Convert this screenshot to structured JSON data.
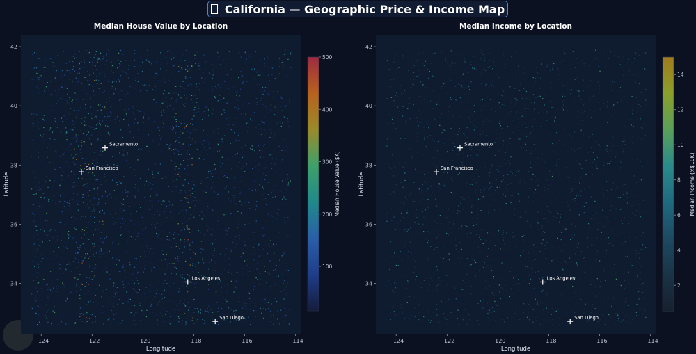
{
  "title": "California — Geographic Price & Income Map",
  "chart_data": [
    {
      "type": "scatter",
      "title": "Median House Value by Location",
      "xlabel": "Longitude",
      "ylabel": "Latitude",
      "xlim": [
        -124.8,
        -113.8
      ],
      "ylim": [
        32.3,
        42.4
      ],
      "xticks": [
        -124,
        -122,
        -120,
        -118,
        -116,
        -114
      ],
      "yticks": [
        34,
        36,
        38,
        40,
        42
      ],
      "colorbar": {
        "label": "Median House Value ($K)",
        "range": [
          15,
          500
        ],
        "ticks": [
          100,
          200,
          300,
          400,
          500
        ],
        "colormap": [
          "#151c3a",
          "#1f3d8a",
          "#2a5fa8",
          "#1f8a8a",
          "#3ea06a",
          "#9a8a2a",
          "#b8621e",
          "#9e2a40"
        ]
      },
      "cities": [
        {
          "name": "San Francisco",
          "lon": -122.42,
          "lat": 37.77
        },
        {
          "name": "Los Angeles",
          "lon": -118.24,
          "lat": 34.05
        },
        {
          "name": "San Diego",
          "lon": -117.16,
          "lat": 32.72
        },
        {
          "name": "Sacramento",
          "lon": -121.49,
          "lat": 38.58
        }
      ]
    },
    {
      "type": "scatter",
      "title": "Median Income by Location",
      "xlabel": "Longitude",
      "ylabel": "Latitude",
      "xlim": [
        -124.8,
        -113.8
      ],
      "ylim": [
        32.3,
        42.4
      ],
      "xticks": [
        -124,
        -122,
        -120,
        -118,
        -116,
        -114
      ],
      "yticks": [
        34,
        36,
        38,
        40,
        42
      ],
      "colorbar": {
        "label": "Median Income (×$10K)",
        "range": [
          0.5,
          15
        ],
        "ticks": [
          2,
          4,
          6,
          8,
          10,
          12,
          14
        ],
        "colormap": [
          "#16202e",
          "#1a3346",
          "#1d4a62",
          "#1f6a80",
          "#2a8a8a",
          "#5aa05a",
          "#8aa02a",
          "#a07a1e"
        ]
      },
      "cities": [
        {
          "name": "San Francisco",
          "lon": -122.42,
          "lat": 37.77
        },
        {
          "name": "Los Angeles",
          "lon": -118.24,
          "lat": 34.05
        },
        {
          "name": "San Diego",
          "lon": -117.16,
          "lat": 32.72
        },
        {
          "name": "Sacramento",
          "lon": -121.49,
          "lat": 38.58
        }
      ]
    }
  ]
}
